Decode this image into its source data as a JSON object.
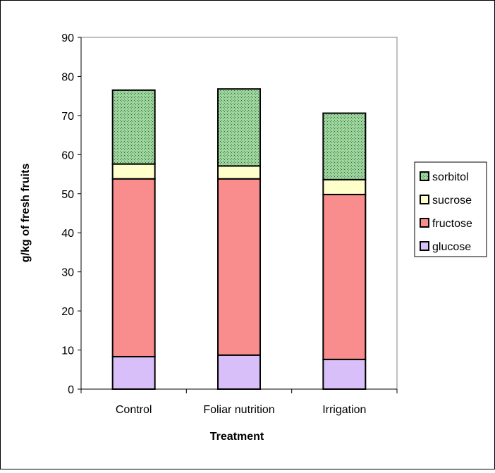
{
  "chart_data": {
    "type": "bar",
    "stacked": true,
    "title": "",
    "xlabel": "Treatment",
    "ylabel": "g/kg of fresh fruits",
    "ylim": [
      0,
      90
    ],
    "yticks": [
      0,
      10,
      20,
      30,
      40,
      50,
      60,
      70,
      80,
      90
    ],
    "categories": [
      "Control",
      "Foliar nutrition",
      "Irrigation"
    ],
    "series": [
      {
        "name": "glucose",
        "values": [
          8.3,
          8.7,
          7.6
        ],
        "color": "#D9BFFA"
      },
      {
        "name": "fructose",
        "values": [
          45.5,
          45.1,
          42.2
        ],
        "color": "#F98C8C"
      },
      {
        "name": "sucrose",
        "values": [
          3.8,
          3.3,
          3.8
        ],
        "color": "#FFFFCC"
      },
      {
        "name": "sorbitol",
        "values": [
          18.9,
          19.7,
          17.0
        ],
        "color": "#9FD69F",
        "pattern": "dotted"
      }
    ],
    "legend": {
      "position": "right",
      "order": [
        "sorbitol",
        "sucrose",
        "fructose",
        "glucose"
      ]
    },
    "grid": false,
    "frame_color": "#000000",
    "plot_border_color": "#808080"
  }
}
